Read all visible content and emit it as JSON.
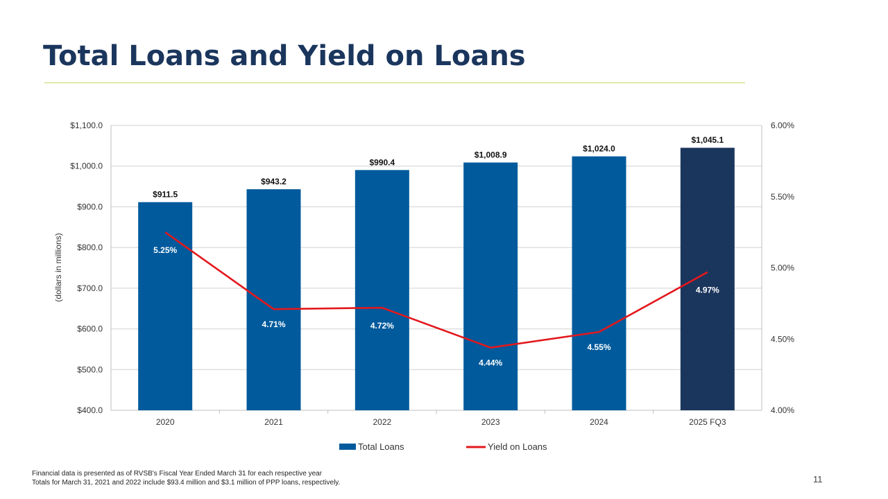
{
  "slide": {
    "title": "Total Loans and Yield on Loans",
    "footnote_1": "Financial data is presented as of RVSB's Fiscal Year Ended March 31 for each respective year",
    "footnote_2": "Totals for March 31, 2021 and 2022 include $93.4 million and $3.1 million of PPP loans, respectively.",
    "page_number": "11"
  },
  "colors": {
    "bar": "#005a9c",
    "bar_highlight": "#1b365d",
    "line": "#e3181d",
    "title": "#1b365d",
    "rule": "#c6d96b"
  },
  "chart_data": {
    "type": "bar",
    "categories": [
      "2020",
      "2021",
      "2022",
      "2023",
      "2024",
      "2025 FQ3"
    ],
    "series": [
      {
        "name": "Total Loans",
        "type": "bar",
        "axis": "left",
        "values": [
          911.5,
          943.2,
          990.4,
          1008.9,
          1024.0,
          1045.1
        ],
        "labels": [
          "$911.5",
          "$943.2",
          "$990.4",
          "$1,008.9",
          "$1,024.0",
          "$1,045.1"
        ],
        "highlight_last": true
      },
      {
        "name": "Yield on Loans",
        "type": "line",
        "axis": "right",
        "values": [
          5.25,
          4.71,
          4.72,
          4.44,
          4.55,
          4.97
        ],
        "labels": [
          "5.25%",
          "4.71%",
          "4.72%",
          "4.44%",
          "4.55%",
          "4.97%"
        ]
      }
    ],
    "ylabel": "(dollars in millions)",
    "ylim": [
      400,
      1100
    ],
    "yticks": [
      400,
      500,
      600,
      700,
      800,
      900,
      1000,
      1100
    ],
    "ytick_labels": [
      "$400.0",
      "$500.0",
      "$600.0",
      "$700.0",
      "$800.0",
      "$900.0",
      "$1,000.0",
      "$1,100.0"
    ],
    "y2lim": [
      4.0,
      6.0
    ],
    "y2ticks": [
      4.0,
      4.5,
      5.0,
      5.5,
      6.0
    ],
    "y2tick_labels": [
      "4.00%",
      "4.50%",
      "5.00%",
      "5.50%",
      "6.00%"
    ],
    "grid": true,
    "legend_position": "bottom"
  }
}
